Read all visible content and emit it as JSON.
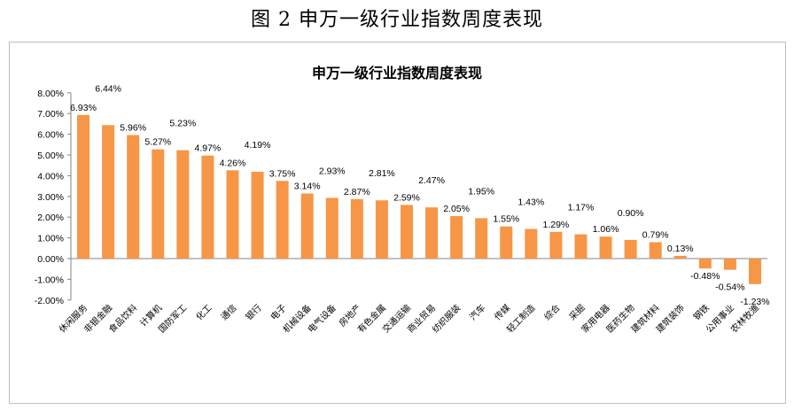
{
  "figure_title": "图 2 申万一级行业指数周度表现",
  "chart_data": {
    "type": "bar",
    "title": "申万一级行业指数周度表现",
    "xlabel": "",
    "ylabel": "",
    "ylim": [
      -2,
      8
    ],
    "yticks": [
      -2,
      -1,
      0,
      1,
      2,
      3,
      4,
      5,
      6,
      7,
      8
    ],
    "ytick_format": "percent_2dp",
    "grid": false,
    "legend": "none",
    "bar_color": "#F79646",
    "categories": [
      "休闲服务",
      "非银金融",
      "食品饮料",
      "计算机",
      "国防军工",
      "化工",
      "通信",
      "银行",
      "电子",
      "机械设备",
      "电气设备",
      "房地产",
      "有色金属",
      "交通运输",
      "商业贸易",
      "纺织服装",
      "汽车",
      "传媒",
      "轻工制造",
      "综合",
      "采掘",
      "家用电器",
      "医药生物",
      "建筑材料",
      "建筑装饰",
      "钢铁",
      "公用事业",
      "农林牧渔"
    ],
    "values": [
      6.93,
      6.44,
      5.96,
      5.27,
      5.23,
      4.97,
      4.26,
      4.19,
      3.75,
      3.14,
      2.93,
      2.87,
      2.81,
      2.59,
      2.47,
      2.05,
      1.95,
      1.55,
      1.43,
      1.29,
      1.17,
      1.06,
      0.9,
      0.79,
      0.13,
      -0.48,
      -0.54,
      -1.23
    ]
  }
}
